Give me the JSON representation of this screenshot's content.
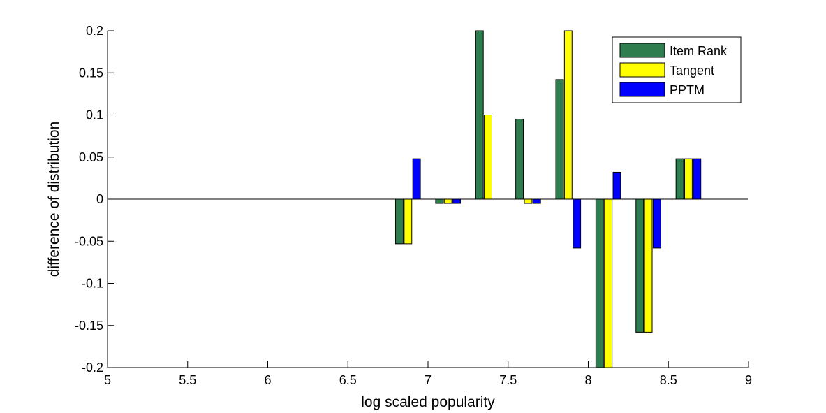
{
  "chart_data": {
    "type": "bar",
    "xlabel": "log scaled popularity",
    "ylabel": "difference of distribution",
    "xlim": [
      5,
      9
    ],
    "ylim": [
      -0.2,
      0.2
    ],
    "xticks": [
      "5",
      "5.5",
      "6",
      "6.5",
      "7",
      "7.5",
      "8",
      "8.5",
      "9"
    ],
    "yticks": [
      "-0.2",
      "-0.15",
      "-0.1",
      "-0.05",
      "0",
      "0.05",
      "0.1",
      "0.15",
      "0.2"
    ],
    "legend_position": "top-right",
    "x": [
      6.875,
      7.125,
      7.375,
      7.625,
      7.875,
      8.125,
      8.375,
      8.625
    ],
    "series": [
      {
        "name": "Item Rank",
        "color": "#2e7d4f",
        "values": [
          -0.053,
          -0.005,
          0.2,
          0.095,
          0.142,
          -0.2,
          -0.158,
          0.048
        ]
      },
      {
        "name": "Tangent",
        "color": "#ffff00",
        "values": [
          -0.053,
          -0.005,
          0.1,
          -0.005,
          0.2,
          -0.2,
          -0.158,
          0.048
        ]
      },
      {
        "name": "PPTM",
        "color": "#0000ff",
        "values": [
          0.048,
          -0.005,
          0,
          -0.005,
          -0.058,
          0.032,
          -0.058,
          0.048
        ]
      }
    ]
  }
}
